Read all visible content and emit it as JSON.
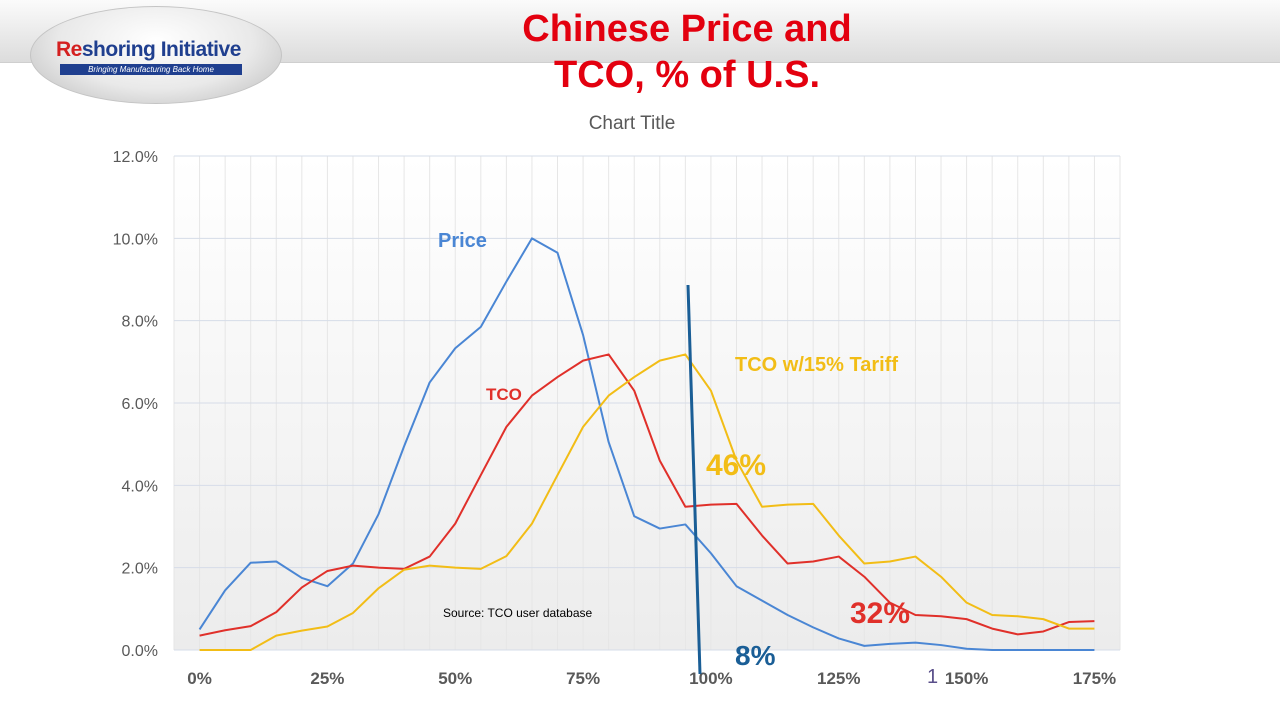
{
  "header": {
    "logo_text_re": "Re",
    "logo_text_rest": "shoring Initiative",
    "logo_tagline": "Bringing Manufacturing Back Home",
    "title_line1": "Chinese Price and",
    "title_line2": "TCO, % of U.S."
  },
  "colors": {
    "price": "#4a86d4",
    "tco": "#e0302a",
    "tariff": "#f2bd16",
    "title": "#e3000f",
    "vline": "#1a5e96",
    "grid": "#d6dce8",
    "grid_minor": "#e6e6e6"
  },
  "chart_data": {
    "type": "line",
    "title": "Chart  Title",
    "x_tick_labels": [
      "0%",
      "25%",
      "50%",
      "75%",
      "100%",
      "125%",
      "150%",
      "175%"
    ],
    "y_tick_labels": [
      "0.0%",
      "2.0%",
      "4.0%",
      "6.0%",
      "8.0%",
      "10.0%",
      "12.0%"
    ],
    "ylim": [
      0,
      12
    ],
    "grid": true,
    "x": [
      0,
      5,
      10,
      15,
      20,
      25,
      30,
      35,
      40,
      45,
      50,
      55,
      60,
      65,
      70,
      75,
      80,
      85,
      90,
      95,
      100,
      105,
      110,
      115,
      120,
      125,
      130,
      135,
      140,
      145,
      150,
      155,
      160,
      165,
      170,
      175
    ],
    "series": [
      {
        "name": "Price",
        "color_key": "price",
        "values": [
          0.5,
          1.45,
          2.12,
          2.15,
          1.75,
          1.55,
          2.1,
          3.3,
          4.95,
          6.5,
          7.33,
          7.85,
          8.95,
          10.0,
          9.65,
          7.65,
          5.05,
          3.25,
          2.95,
          3.05,
          2.35,
          1.55,
          1.2,
          0.85,
          0.55,
          0.28,
          0.1,
          0.15,
          0.18,
          0.12,
          0.03,
          0.0,
          0.0,
          0.0,
          0.0,
          0.0
        ]
      },
      {
        "name": "TCO",
        "color_key": "tco",
        "values": [
          0.35,
          0.48,
          0.58,
          0.92,
          1.52,
          1.92,
          2.05,
          2.0,
          1.97,
          2.27,
          3.07,
          4.25,
          5.42,
          6.18,
          6.63,
          7.03,
          7.18,
          6.3,
          4.6,
          3.48,
          3.53,
          3.55,
          2.78,
          2.1,
          2.15,
          2.27,
          1.78,
          1.15,
          0.85,
          0.82,
          0.75,
          0.52,
          0.38,
          0.45,
          0.68,
          0.7
        ]
      },
      {
        "name": "TCO  w/15%  Tariff",
        "color_key": "tariff",
        "values": [
          0.0,
          0.0,
          0.0,
          0.35,
          0.47,
          0.57,
          0.9,
          1.5,
          1.95,
          2.05,
          2.0,
          1.97,
          2.28,
          3.07,
          4.25,
          5.42,
          6.18,
          6.63,
          7.03,
          7.18,
          6.3,
          4.6,
          3.48,
          3.53,
          3.55,
          2.78,
          2.1,
          2.15,
          2.27,
          1.78,
          1.15,
          0.85,
          0.82,
          0.75,
          0.52,
          0.52
        ]
      }
    ],
    "annotations": {
      "price_label": "Price",
      "tco_label": "TCO",
      "tariff_label": "TCO  w/15%  Tariff",
      "pct_46": "46%",
      "pct_32": "32%",
      "pct_8": "8%",
      "source": "Source: TCO user database",
      "stray_1": "1"
    }
  }
}
